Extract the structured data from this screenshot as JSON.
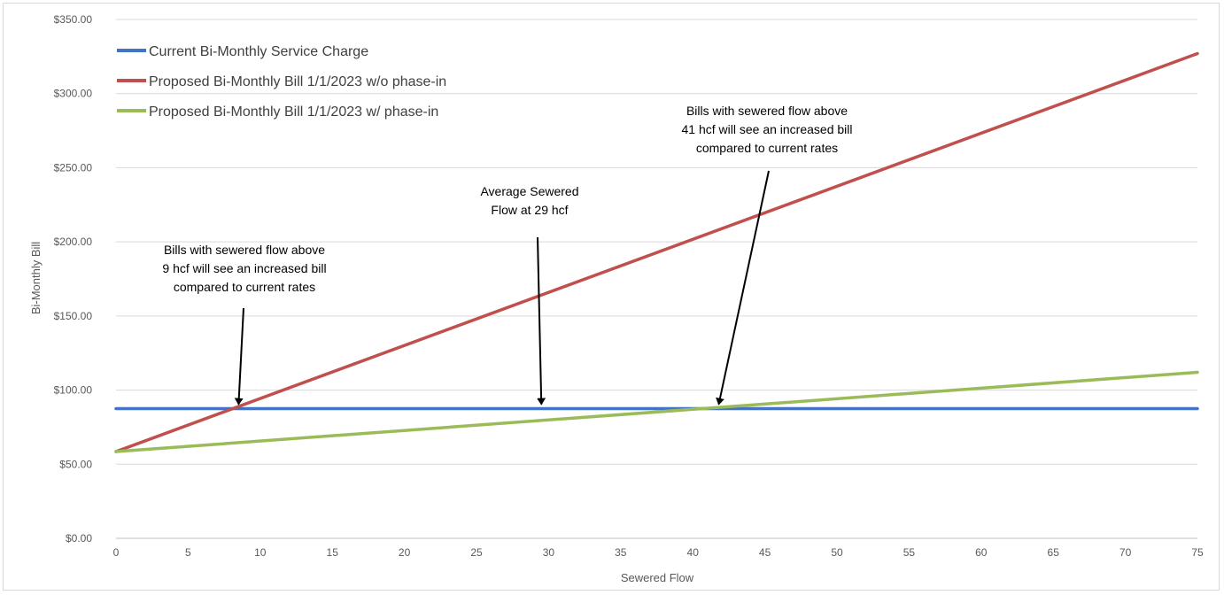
{
  "chart_data": {
    "type": "line",
    "title": "",
    "xlabel": "Sewered Flow",
    "ylabel": "Bi-Monthly Bill",
    "xlim": [
      0,
      75
    ],
    "ylim": [
      0,
      350
    ],
    "x_ticks": [
      0,
      5,
      10,
      15,
      20,
      25,
      30,
      35,
      40,
      45,
      50,
      55,
      60,
      65,
      70,
      75
    ],
    "y_ticks": [
      0,
      50,
      100,
      150,
      200,
      250,
      300,
      350
    ],
    "y_tick_labels": [
      "$0.00",
      "$50.00",
      "$100.00",
      "$150.00",
      "$200.00",
      "$250.00",
      "$300.00",
      "$350.00"
    ],
    "grid": "horizontal",
    "legend_position": "top-left",
    "series": [
      {
        "name": "Current Bi-Monthly Service Charge",
        "color": "#4472c4",
        "x": [
          0,
          75
        ],
        "y": [
          87.5,
          87.5
        ]
      },
      {
        "name": "Proposed Bi-Monthly Bill 1/1/2023 w/o phase-in",
        "color": "#c0504d",
        "x": [
          0,
          75
        ],
        "y": [
          58.5,
          327
        ]
      },
      {
        "name": "Proposed Bi-Monthly Bill 1/1/2023 w/ phase-in",
        "color": "#9bbb59",
        "x": [
          0,
          75
        ],
        "y": [
          58.5,
          112
        ]
      }
    ],
    "annotations": [
      {
        "lines": [
          "Bills with sewered flow above",
          "9 hcf will see an increased bill",
          "compared to current rates"
        ],
        "arrow_to": [
          8.5,
          88
        ]
      },
      {
        "lines": [
          "Average Sewered",
          "Flow at 29 hcf"
        ],
        "arrow_to": [
          29.5,
          88
        ]
      },
      {
        "lines": [
          "Bills with sewered flow above",
          "41 hcf will see an increased bill",
          "compared to current rates"
        ],
        "arrow_to": [
          41.8,
          88
        ]
      }
    ]
  }
}
